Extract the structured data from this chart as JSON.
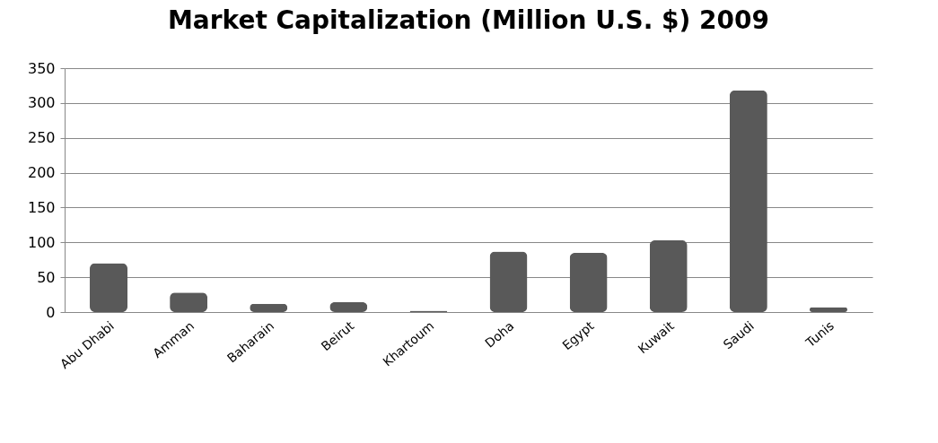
{
  "chart_data": {
    "type": "bar",
    "title": "Market Capitalization (Million U.S. $) 2009",
    "categories": [
      "Abu Dhabi",
      "Amman",
      "Baharain",
      "Beirut",
      "Khartoum",
      "Doha",
      "Egypt",
      "Kuwait",
      "Saudi",
      "Tunis"
    ],
    "values": [
      70,
      28,
      12,
      14,
      2,
      87,
      85,
      103,
      318,
      7
    ],
    "color": "#595959",
    "ylim": [
      0,
      350
    ],
    "yticks": [
      0,
      50,
      100,
      150,
      200,
      250,
      300,
      350
    ],
    "grid": true
  }
}
